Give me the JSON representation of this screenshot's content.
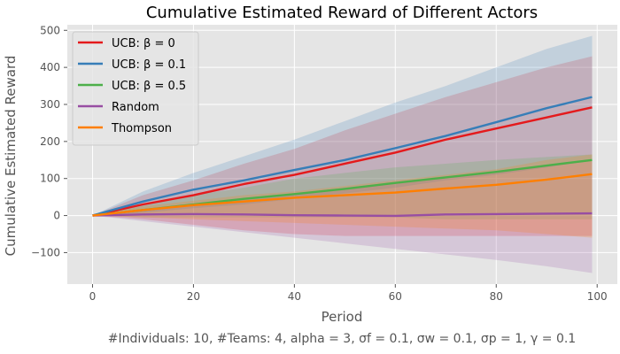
{
  "chart_data": {
    "type": "line",
    "title": "Cumulative Estimated Reward of Different Actors",
    "xlabel": "Period",
    "ylabel": "Cumulative Estimated Reward",
    "xlim": [
      -5,
      104
    ],
    "ylim": [
      -185,
      515
    ],
    "xticks": [
      0,
      20,
      40,
      60,
      80,
      100
    ],
    "yticks": [
      -100,
      0,
      100,
      200,
      300,
      400,
      500
    ],
    "xtick_labels": [
      "0",
      "20",
      "40",
      "60",
      "80",
      "100"
    ],
    "ytick_labels": [
      "−100",
      "0",
      "100",
      "200",
      "300",
      "400",
      "500"
    ],
    "grid": true,
    "legend_position": "top-left",
    "footnote": "#Individuals: 10,  #Teams: 4,  alpha = 3,  σf = 0.1,  σw = 0.1,  σp = 1,  γ = 0.1",
    "series": [
      {
        "name": "UCB: β = 0",
        "color": "#e41a1c",
        "x": [
          0,
          10,
          20,
          30,
          40,
          50,
          60,
          70,
          80,
          90,
          99
        ],
        "mean": [
          0,
          30,
          55,
          85,
          110,
          140,
          170,
          205,
          235,
          265,
          292
        ],
        "lower": [
          0,
          -10,
          -25,
          -40,
          -50,
          -55,
          -55,
          -55,
          -55,
          -55,
          -55
        ],
        "upper": [
          0,
          55,
          95,
          140,
          180,
          230,
          275,
          320,
          360,
          400,
          430
        ]
      },
      {
        "name": "UCB: β = 0.1",
        "color": "#377eb8",
        "x": [
          0,
          10,
          20,
          30,
          40,
          50,
          60,
          70,
          80,
          90,
          99
        ],
        "mean": [
          0,
          38,
          70,
          95,
          123,
          150,
          182,
          215,
          252,
          290,
          320
        ],
        "lower": [
          0,
          8,
          20,
          30,
          45,
          60,
          75,
          95,
          110,
          130,
          150
        ],
        "upper": [
          0,
          65,
          115,
          160,
          205,
          255,
          305,
          350,
          400,
          450,
          485
        ]
      },
      {
        "name": "UCB: β = 0.5",
        "color": "#4daf4a",
        "x": [
          0,
          10,
          20,
          30,
          40,
          50,
          60,
          70,
          80,
          90,
          99
        ],
        "mean": [
          0,
          15,
          30,
          45,
          58,
          72,
          88,
          103,
          118,
          135,
          150
        ],
        "lower": [
          0,
          -5,
          -5,
          -5,
          -5,
          -5,
          -5,
          -10,
          -10,
          -10,
          -10
        ],
        "upper": [
          0,
          30,
          55,
          75,
          100,
          115,
          130,
          140,
          150,
          158,
          165
        ]
      },
      {
        "name": "Random",
        "color": "#984ea3",
        "x": [
          0,
          10,
          20,
          30,
          40,
          50,
          60,
          70,
          80,
          90,
          99
        ],
        "mean": [
          0,
          3,
          4,
          3,
          1,
          0,
          -1,
          3,
          4,
          5,
          6
        ],
        "lower": [
          0,
          -15,
          -30,
          -45,
          -60,
          -75,
          -90,
          -105,
          -120,
          -137,
          -155
        ],
        "upper": [
          0,
          15,
          30,
          45,
          60,
          75,
          90,
          105,
          120,
          137,
          150
        ]
      },
      {
        "name": "Thompson",
        "color": "#ff7f00",
        "x": [
          0,
          10,
          20,
          30,
          40,
          50,
          60,
          70,
          80,
          90,
          99
        ],
        "mean": [
          0,
          15,
          28,
          38,
          48,
          55,
          62,
          73,
          83,
          97,
          112
        ],
        "lower": [
          0,
          -5,
          -10,
          -15,
          -20,
          -25,
          -30,
          -35,
          -40,
          -50,
          -60
        ],
        "upper": [
          0,
          25,
          40,
          55,
          65,
          80,
          95,
          110,
          125,
          150,
          165
        ]
      }
    ]
  }
}
